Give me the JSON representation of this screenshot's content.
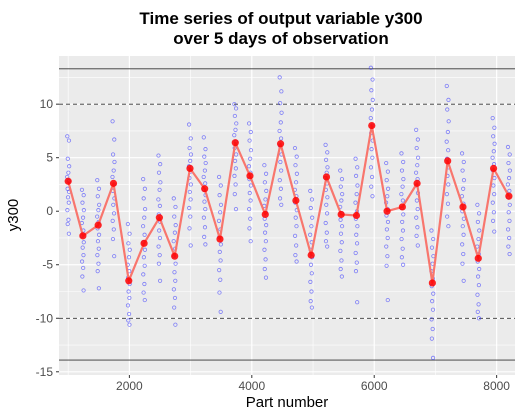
{
  "chart_data": {
    "type": "line",
    "title": "Time series of output variable y300",
    "subtitle": "over 5 days of observation",
    "xlabel": "Part number",
    "ylabel": "y300",
    "xlim": [
      850,
      8300
    ],
    "ylim": [
      -15.3,
      14.5
    ],
    "x_ticks": [
      2000,
      4000,
      6000,
      8000
    ],
    "y_ticks": [
      -15,
      -10,
      -5,
      0,
      5,
      10
    ],
    "grid": true,
    "legend": "none",
    "colors": {
      "panel": "#ebebeb",
      "grid": "#ffffff",
      "points": "#3333ff",
      "mean_line": "#f8766d",
      "mean_points": "#ff0000",
      "control_limits": "#333333"
    },
    "reference_lines": [
      {
        "kind": "solid",
        "y": 13.3
      },
      {
        "kind": "dashed",
        "y": 10
      },
      {
        "kind": "dashed",
        "y": -10
      },
      {
        "kind": "solid",
        "y": -13.9
      }
    ],
    "series": [
      {
        "mean_points": [
          {
            "x": 1000,
            "y": 2.8
          },
          {
            "x": 1240,
            "y": -2.3
          },
          {
            "x": 1490,
            "y": -1.3
          },
          {
            "x": 1740,
            "y": 2.6
          },
          {
            "x": 1990,
            "y": -6.5
          },
          {
            "x": 2240,
            "y": -3.0
          },
          {
            "x": 2490,
            "y": -0.6
          },
          {
            "x": 2740,
            "y": -4.2
          },
          {
            "x": 2990,
            "y": 4.0
          },
          {
            "x": 3230,
            "y": 2.1
          },
          {
            "x": 3480,
            "y": -2.6
          },
          {
            "x": 3730,
            "y": 6.4
          },
          {
            "x": 3970,
            "y": 3.3
          },
          {
            "x": 4220,
            "y": -0.3
          },
          {
            "x": 4470,
            "y": 6.3
          },
          {
            "x": 4720,
            "y": 1.0
          },
          {
            "x": 4970,
            "y": -4.1
          },
          {
            "x": 5220,
            "y": 3.2
          },
          {
            "x": 5460,
            "y": -0.3
          },
          {
            "x": 5710,
            "y": -0.4
          },
          {
            "x": 5960,
            "y": 8.0
          },
          {
            "x": 6210,
            "y": 0.0
          },
          {
            "x": 6460,
            "y": 0.4
          },
          {
            "x": 6700,
            "y": 2.6
          },
          {
            "x": 6950,
            "y": -6.7
          },
          {
            "x": 7200,
            "y": 4.7
          },
          {
            "x": 7450,
            "y": 0.4
          },
          {
            "x": 7700,
            "y": -4.4
          },
          {
            "x": 7950,
            "y": 4.0
          },
          {
            "x": 8200,
            "y": 1.4
          }
        ]
      }
    ],
    "raw_points_per_part": [
      {
        "x": 1000,
        "values": [
          7.0,
          6.6,
          4.9,
          4.2,
          3.6,
          3.2,
          2.8,
          2.1,
          1.8,
          1.3,
          0.8,
          0.1,
          -0.8,
          -1.2,
          -2.1
        ]
      },
      {
        "x": 1240,
        "values": [
          2.0,
          1.5,
          0.8,
          0.1,
          -0.6,
          -1.1,
          -1.8,
          -2.3,
          -2.9,
          -3.4,
          -4.1,
          -4.7,
          -5.3,
          -6.1,
          -7.4
        ]
      },
      {
        "x": 1490,
        "values": [
          2.9,
          2.1,
          1.4,
          0.6,
          0.1,
          -0.5,
          -1.0,
          -1.6,
          -2.2,
          -2.8,
          -3.5,
          -4.1,
          -4.9,
          -5.6,
          -7.2
        ]
      },
      {
        "x": 1740,
        "values": [
          8.4,
          6.7,
          5.3,
          4.6,
          3.8,
          3.2,
          2.5,
          1.9,
          1.2,
          0.6,
          -0.2,
          -0.9,
          -1.7,
          -2.6,
          -4.2
        ]
      },
      {
        "x": 1990,
        "values": [
          -1.2,
          -2.1,
          -3.0,
          -3.6,
          -4.3,
          -5.0,
          -5.6,
          -6.2,
          -6.8,
          -7.5,
          -8.1,
          -8.8,
          -9.6,
          -10.2,
          -10.6
        ]
      },
      {
        "x": 2240,
        "values": [
          3.0,
          2.1,
          1.2,
          0.2,
          -0.6,
          -1.4,
          -2.2,
          -2.9,
          -3.6,
          -4.3,
          -5.1,
          -5.9,
          -6.8,
          -7.6,
          -8.3
        ]
      },
      {
        "x": 2490,
        "values": [
          5.2,
          4.4,
          3.6,
          2.7,
          2.0,
          1.1,
          0.5,
          -0.3,
          -1.0,
          -1.8,
          -2.5,
          -3.3,
          -4.1,
          -4.9,
          -6.5
        ]
      },
      {
        "x": 2740,
        "values": [
          1.2,
          0.4,
          -0.5,
          -1.3,
          -2.0,
          -2.8,
          -3.5,
          -4.2,
          -4.9,
          -5.7,
          -6.5,
          -7.3,
          -8.1,
          -9.0,
          -10.6
        ]
      },
      {
        "x": 2990,
        "values": [
          8.1,
          6.8,
          5.9,
          5.3,
          4.7,
          4.2,
          3.7,
          3.1,
          2.5,
          1.8,
          1.1,
          0.3,
          -0.5,
          -1.6,
          -3.2
        ]
      },
      {
        "x": 3230,
        "values": [
          6.9,
          5.8,
          5.1,
          4.5,
          3.8,
          3.2,
          2.6,
          2.0,
          1.5,
          0.9,
          0.2,
          -0.6,
          -1.5,
          -2.4,
          -3.1
        ]
      },
      {
        "x": 3480,
        "values": [
          3.2,
          2.4,
          1.5,
          0.6,
          -0.1,
          -0.9,
          -1.7,
          -2.4,
          -3.1,
          -3.8,
          -4.6,
          -5.5,
          -6.4,
          -7.6,
          -9.4
        ]
      },
      {
        "x": 3730,
        "values": [
          10.0,
          9.6,
          8.9,
          8.2,
          7.6,
          7.1,
          6.5,
          5.9,
          5.3,
          4.7,
          4.0,
          3.3,
          2.5,
          1.6,
          0.2
        ]
      },
      {
        "x": 3970,
        "values": [
          8.2,
          7.4,
          6.6,
          5.7,
          4.9,
          4.2,
          3.6,
          3.0,
          2.4,
          1.7,
          1.0,
          0.2,
          -0.7,
          -1.6,
          -2.8
        ]
      },
      {
        "x": 4220,
        "values": [
          4.3,
          3.5,
          2.7,
          1.9,
          1.1,
          0.5,
          -0.1,
          -0.7,
          -1.3,
          -2.0,
          -2.8,
          -3.6,
          -4.5,
          -5.4,
          -6.2
        ]
      },
      {
        "x": 4470,
        "values": [
          12.5,
          11.2,
          10.1,
          9.2,
          8.3,
          7.5,
          6.8,
          6.1,
          5.3,
          4.6,
          3.8,
          2.9,
          2.1,
          1.2,
          0.6
        ]
      },
      {
        "x": 4720,
        "values": [
          5.9,
          5.1,
          4.3,
          3.5,
          2.7,
          2.0,
          1.4,
          0.8,
          0.1,
          -0.6,
          -1.4,
          -2.3,
          -3.2,
          -4.1,
          -4.7
        ]
      },
      {
        "x": 4970,
        "values": [
          1.9,
          1.1,
          0.3,
          -0.6,
          -1.4,
          -2.2,
          -2.9,
          -3.6,
          -4.3,
          -5.0,
          -5.8,
          -6.6,
          -7.5,
          -8.4,
          -9.0
        ]
      },
      {
        "x": 5220,
        "values": [
          6.2,
          5.5,
          4.8,
          4.1,
          3.6,
          3.1,
          2.6,
          2.0,
          1.3,
          0.6,
          -0.2,
          -1.1,
          -2.0,
          -2.8,
          -3.3
        ]
      },
      {
        "x": 5460,
        "values": [
          3.8,
          3.0,
          2.3,
          1.6,
          1.0,
          0.4,
          -0.2,
          -0.8,
          -1.4,
          -2.1,
          -2.9,
          -3.7,
          -4.6,
          -5.4,
          -6.1
        ]
      },
      {
        "x": 5710,
        "values": [
          4.9,
          4.1,
          3.3,
          2.4,
          1.6,
          0.8,
          0.0,
          -0.7,
          -1.4,
          -2.2,
          -3.0,
          -3.9,
          -4.8,
          -5.6,
          -8.5
        ]
      },
      {
        "x": 5960,
        "values": [
          13.4,
          12.3,
          11.3,
          10.4,
          9.5,
          8.7,
          8.0,
          7.3,
          6.6,
          5.8,
          5.0,
          4.1,
          3.2,
          2.3,
          1.4
        ]
      },
      {
        "x": 6210,
        "values": [
          4.5,
          3.7,
          2.9,
          2.1,
          1.4,
          0.8,
          0.2,
          -0.4,
          -1.0,
          -1.7,
          -2.5,
          -3.3,
          -4.2,
          -5.1,
          -8.3
        ]
      },
      {
        "x": 6460,
        "values": [
          5.4,
          4.6,
          3.8,
          3.0,
          2.3,
          1.6,
          1.0,
          0.3,
          -0.3,
          -1.0,
          -1.8,
          -2.6,
          -3.5,
          -4.3,
          -5.0
        ]
      },
      {
        "x": 6700,
        "values": [
          7.6,
          6.7,
          5.9,
          5.0,
          4.3,
          3.6,
          3.0,
          2.4,
          1.7,
          1.0,
          0.2,
          -0.6,
          -1.5,
          -2.3,
          -3.2
        ]
      },
      {
        "x": 6950,
        "values": [
          -1.8,
          -2.6,
          -3.4,
          -4.2,
          -4.9,
          -5.6,
          -6.3,
          -7.0,
          -7.7,
          -8.4,
          -9.2,
          -10.1,
          -11.0,
          -11.9,
          -13.7
        ]
      },
      {
        "x": 7200,
        "values": [
          11.7,
          10.4,
          9.5,
          8.4,
          7.4,
          6.5,
          5.7,
          4.9,
          4.1,
          3.3,
          2.5,
          1.6,
          0.7,
          -0.5,
          -1.4
        ]
      },
      {
        "x": 7450,
        "values": [
          5.4,
          4.6,
          3.8,
          2.9,
          2.1,
          1.4,
          0.7,
          0.0,
          -0.7,
          -1.4,
          -2.2,
          -3.1,
          -4.0,
          -4.9,
          -6.5
        ]
      },
      {
        "x": 7700,
        "values": [
          0.6,
          -0.2,
          -1.0,
          -1.8,
          -2.6,
          -3.3,
          -4.0,
          -4.7,
          -5.4,
          -6.1,
          -6.9,
          -7.8,
          -8.7,
          -9.4,
          -10.0
        ]
      },
      {
        "x": 7950,
        "values": [
          8.7,
          7.8,
          7.0,
          6.3,
          5.6,
          5.0,
          4.4,
          3.8,
          3.1,
          2.4,
          1.6,
          0.8,
          -0.1,
          -0.9,
          -1.9
        ]
      },
      {
        "x": 8200,
        "values": [
          6.0,
          5.3,
          4.5,
          3.8,
          3.1,
          2.5,
          1.9,
          1.3,
          0.6,
          -0.1,
          -0.9,
          -1.7,
          -2.5,
          -3.3,
          -4.0
        ]
      }
    ]
  }
}
